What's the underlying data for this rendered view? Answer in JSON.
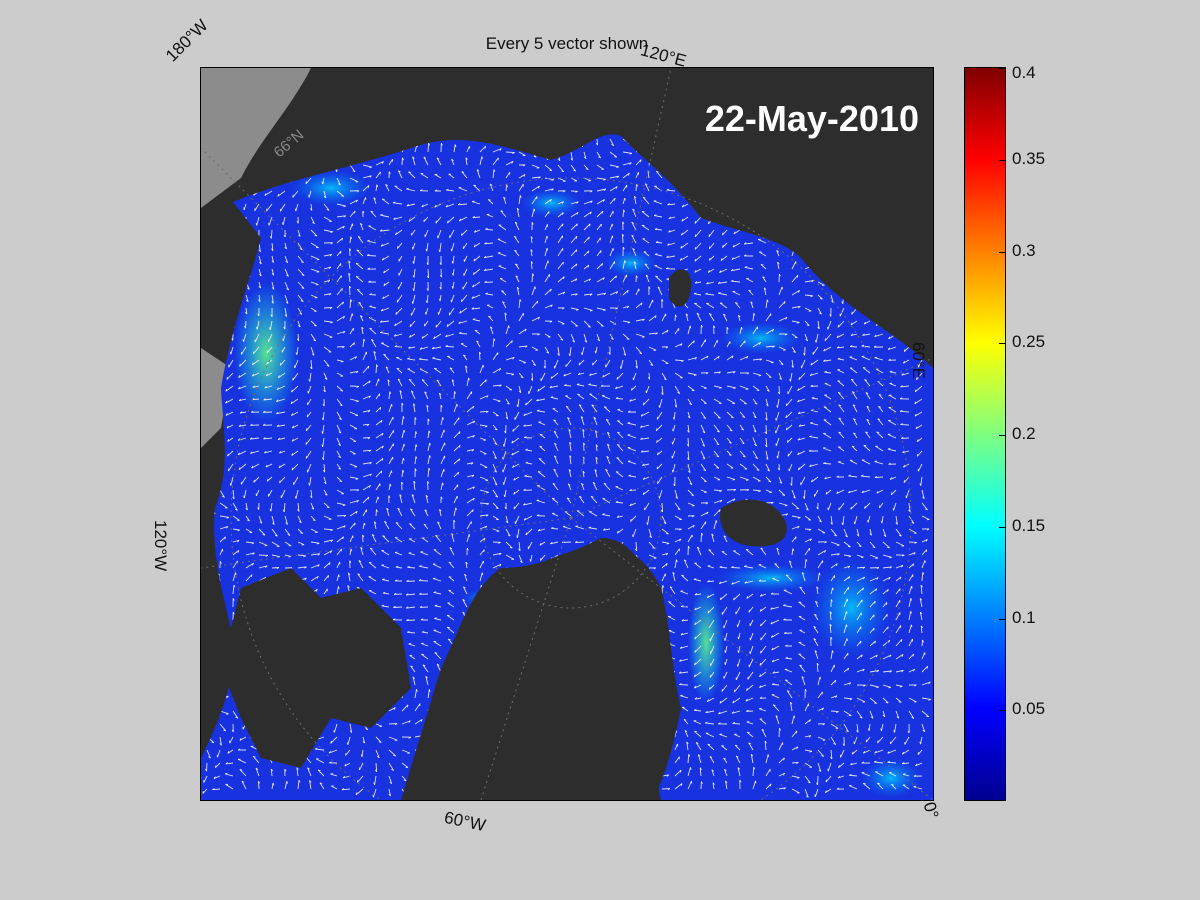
{
  "title": "Every 5 vector shown",
  "date": "22-May-2010",
  "longitude_labels": {
    "w180": "180°W",
    "e120": "120°E",
    "e60": "60°E",
    "w120": "120°W",
    "w60": "60°W",
    "zero": "0°"
  },
  "latitude_label": "66°N",
  "colorbar": {
    "min": 0,
    "max": 0.4,
    "ticks": [
      {
        "value": 0.4,
        "label": "0.4"
      },
      {
        "value": 0.35,
        "label": "0.35"
      },
      {
        "value": 0.3,
        "label": "0.3"
      },
      {
        "value": 0.25,
        "label": "0.25"
      },
      {
        "value": 0.2,
        "label": "0.2"
      },
      {
        "value": 0.15,
        "label": "0.15"
      },
      {
        "value": 0.1,
        "label": "0.1"
      },
      {
        "value": 0.05,
        "label": "0.05"
      }
    ]
  },
  "colors": {
    "ocean": "#1f3ddd",
    "land": "#2d2d2d",
    "ice_shelf": "#8c8c8c",
    "vector": "#ffffff",
    "background": "#cccccc"
  }
}
